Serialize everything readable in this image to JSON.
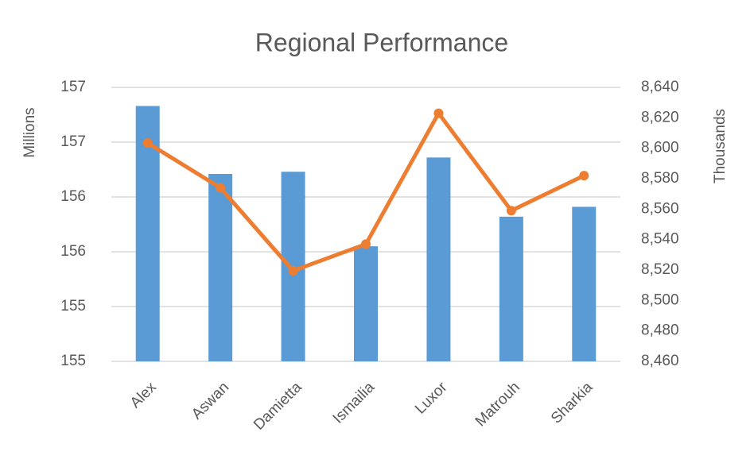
{
  "chart_data": {
    "type": "bar-line",
    "title": "Regional Performance",
    "categories": [
      "Alex",
      "Aswan",
      "Damietta",
      "Ismailia",
      "Luxor",
      "Matrouh",
      "Sharkia"
    ],
    "y_label": "Millions",
    "y2_label": "Thousands",
    "series": [
      {
        "kind": "bar",
        "color": "#5b9bd5",
        "values": [
          157.08,
          156.46,
          156.48,
          155.8,
          156.61,
          156.07,
          156.16
        ]
      },
      {
        "kind": "line",
        "axis": "y2",
        "color": "#ed7d31",
        "values": [
          8603.5,
          8574,
          8519.5,
          8537,
          8623,
          8559,
          8582
        ]
      }
    ],
    "ylim": [
      154.75,
      157.25
    ],
    "yticks": [
      {
        "value": 154.75,
        "label": "155"
      },
      {
        "value": 155.25,
        "label": "155"
      },
      {
        "value": 155.75,
        "label": "156"
      },
      {
        "value": 156.25,
        "label": "156"
      },
      {
        "value": 156.75,
        "label": "157"
      },
      {
        "value": 157.25,
        "label": "157"
      }
    ],
    "y2lim": [
      8460,
      8640
    ],
    "y2ticks": [
      {
        "value": 8460,
        "label": "8,460"
      },
      {
        "value": 8480,
        "label": "8,480"
      },
      {
        "value": 8500,
        "label": "8,500"
      },
      {
        "value": 8520,
        "label": "8,520"
      },
      {
        "value": 8540,
        "label": "8,540"
      },
      {
        "value": 8560,
        "label": "8,560"
      },
      {
        "value": 8580,
        "label": "8,580"
      },
      {
        "value": 8600,
        "label": "8,600"
      },
      {
        "value": 8620,
        "label": "8,620"
      },
      {
        "value": 8640,
        "label": "8,640"
      }
    ],
    "grid": true
  }
}
